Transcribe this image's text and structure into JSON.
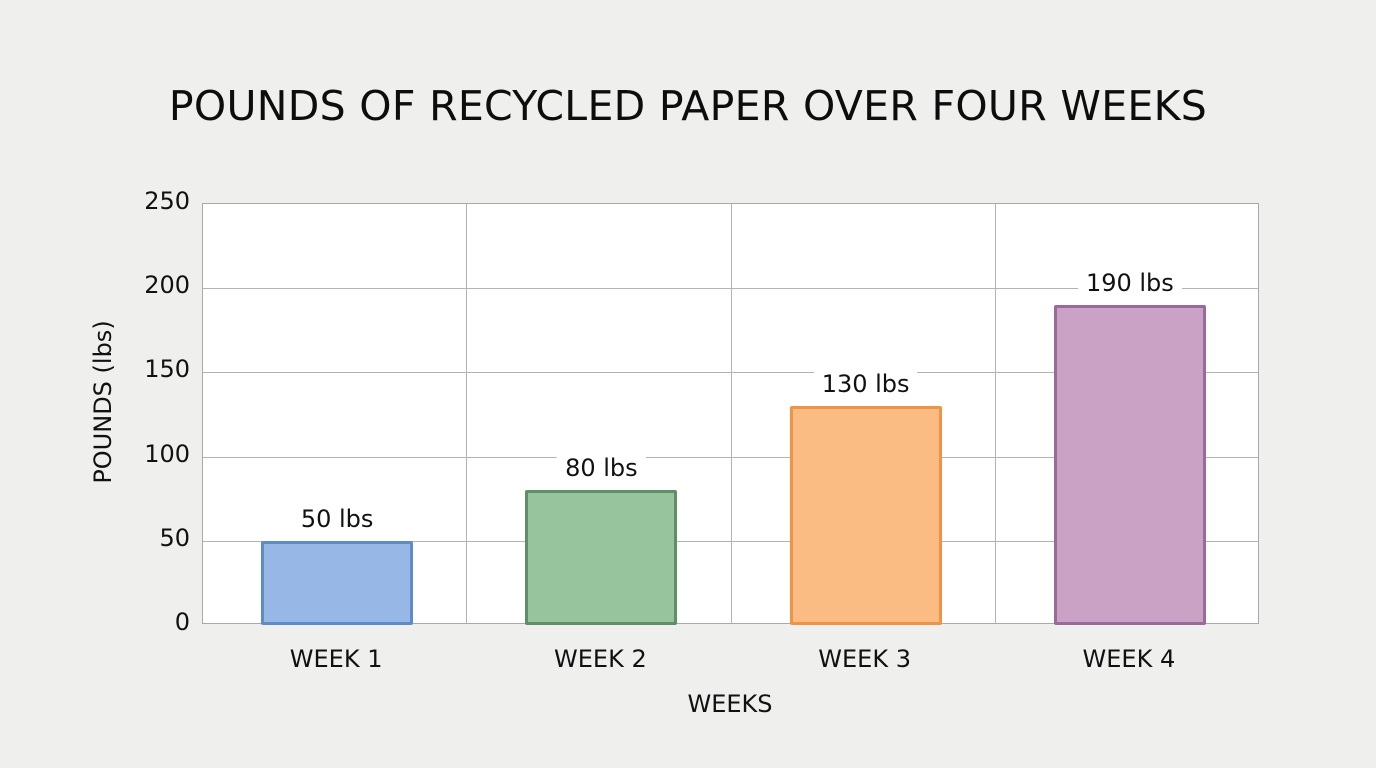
{
  "chart_data": {
    "type": "bar",
    "title": "POUNDS OF RECYCLED PAPER OVER FOUR WEEKS",
    "xlabel": "WEEKS",
    "ylabel": "POUNDS (lbs)",
    "categories": [
      "WEEK 1",
      "WEEK 2",
      "WEEK 3",
      "WEEK 4"
    ],
    "values": [
      50,
      80,
      130,
      190
    ],
    "data_labels": [
      "50 lbs",
      "80 lbs",
      "130 lbs",
      "190 lbs"
    ],
    "ylim": [
      0,
      250
    ],
    "yticks": [
      "0",
      "50",
      "100",
      "150",
      "200",
      "250"
    ],
    "grid": true,
    "legend": null,
    "colors": {
      "fill": [
        "#97b7e6",
        "#97c49c",
        "#fbbc84",
        "#caa2c6"
      ],
      "border": [
        "#5f8cc4",
        "#5f8f65",
        "#ee9446",
        "#9a6a9a"
      ]
    }
  }
}
